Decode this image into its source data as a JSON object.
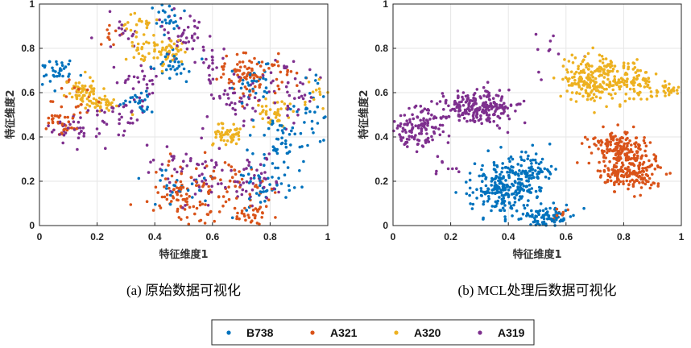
{
  "colors": {
    "B738": "#0072BD",
    "A321": "#D95319",
    "A320": "#EDB120",
    "A319": "#7E2F8E"
  },
  "legend": {
    "entries": [
      "B738",
      "A321",
      "A320",
      "A319"
    ]
  },
  "chart_data": [
    {
      "type": "scatter",
      "title": "(a)  原始数据可视化",
      "xlabel": "特征维度1",
      "ylabel": "特征维度2",
      "xlim": [
        0,
        1
      ],
      "ylim": [
        0,
        1
      ],
      "xticks": [
        "0",
        "0.2",
        "0.4",
        "0.6",
        "0.8",
        "1"
      ],
      "yticks": [
        "0",
        "0.2",
        "0.4",
        "0.6",
        "0.8",
        "1"
      ],
      "grid": true,
      "series": [
        {
          "name": "B738",
          "clusters": [
            {
              "x": 0.06,
              "y": 0.7,
              "sx": 0.03,
              "sy": 0.03,
              "n": 35
            },
            {
              "x": 0.35,
              "y": 0.57,
              "sx": 0.03,
              "sy": 0.03,
              "n": 25
            },
            {
              "x": 0.47,
              "y": 0.72,
              "sx": 0.04,
              "sy": 0.03,
              "n": 30
            },
            {
              "x": 0.45,
              "y": 0.92,
              "sx": 0.03,
              "sy": 0.05,
              "n": 25
            },
            {
              "x": 0.75,
              "y": 0.66,
              "sx": 0.04,
              "sy": 0.05,
              "n": 30
            },
            {
              "x": 0.85,
              "y": 0.38,
              "sx": 0.05,
              "sy": 0.08,
              "n": 55
            },
            {
              "x": 0.78,
              "y": 0.17,
              "sx": 0.05,
              "sy": 0.05,
              "n": 40
            },
            {
              "x": 0.95,
              "y": 0.52,
              "sx": 0.03,
              "sy": 0.1,
              "n": 25
            },
            {
              "x": 0.5,
              "y": 0.18,
              "sx": 0.05,
              "sy": 0.04,
              "n": 25
            }
          ]
        },
        {
          "name": "A321",
          "clusters": [
            {
              "x": 0.08,
              "y": 0.46,
              "sx": 0.03,
              "sy": 0.03,
              "n": 35
            },
            {
              "x": 0.13,
              "y": 0.58,
              "sx": 0.04,
              "sy": 0.05,
              "n": 20
            },
            {
              "x": 0.24,
              "y": 0.86,
              "sx": 0.02,
              "sy": 0.03,
              "n": 10
            },
            {
              "x": 0.72,
              "y": 0.68,
              "sx": 0.05,
              "sy": 0.05,
              "n": 80
            },
            {
              "x": 0.68,
              "y": 0.18,
              "sx": 0.07,
              "sy": 0.05,
              "n": 50
            },
            {
              "x": 0.73,
              "y": 0.05,
              "sx": 0.04,
              "sy": 0.025,
              "n": 35
            },
            {
              "x": 0.48,
              "y": 0.15,
              "sx": 0.04,
              "sy": 0.06,
              "n": 60
            },
            {
              "x": 0.55,
              "y": 0.05,
              "sx": 0.08,
              "sy": 0.04,
              "n": 30
            },
            {
              "x": 0.86,
              "y": 0.68,
              "sx": 0.03,
              "sy": 0.04,
              "n": 15
            }
          ]
        },
        {
          "name": "A320",
          "clusters": [
            {
              "x": 0.15,
              "y": 0.6,
              "sx": 0.03,
              "sy": 0.03,
              "n": 60
            },
            {
              "x": 0.22,
              "y": 0.55,
              "sx": 0.03,
              "sy": 0.02,
              "n": 35
            },
            {
              "x": 0.34,
              "y": 0.92,
              "sx": 0.03,
              "sy": 0.03,
              "n": 20
            },
            {
              "x": 0.36,
              "y": 0.8,
              "sx": 0.03,
              "sy": 0.03,
              "n": 30
            },
            {
              "x": 0.45,
              "y": 0.79,
              "sx": 0.03,
              "sy": 0.03,
              "n": 45
            },
            {
              "x": 0.65,
              "y": 0.41,
              "sx": 0.03,
              "sy": 0.025,
              "n": 50
            },
            {
              "x": 0.82,
              "y": 0.51,
              "sx": 0.03,
              "sy": 0.04,
              "n": 40
            },
            {
              "x": 0.96,
              "y": 0.6,
              "sx": 0.02,
              "sy": 0.05,
              "n": 12
            }
          ]
        },
        {
          "name": "A319",
          "clusters": [
            {
              "x": 0.15,
              "y": 0.43,
              "sx": 0.05,
              "sy": 0.04,
              "n": 35
            },
            {
              "x": 0.28,
              "y": 0.5,
              "sx": 0.04,
              "sy": 0.04,
              "n": 30
            },
            {
              "x": 0.34,
              "y": 0.65,
              "sx": 0.04,
              "sy": 0.04,
              "n": 25
            },
            {
              "x": 0.5,
              "y": 0.87,
              "sx": 0.05,
              "sy": 0.05,
              "n": 40
            },
            {
              "x": 0.6,
              "y": 0.7,
              "sx": 0.03,
              "sy": 0.05,
              "n": 20
            },
            {
              "x": 0.68,
              "y": 0.55,
              "sx": 0.05,
              "sy": 0.05,
              "n": 40
            },
            {
              "x": 0.88,
              "y": 0.6,
              "sx": 0.05,
              "sy": 0.08,
              "n": 40
            },
            {
              "x": 0.52,
              "y": 0.25,
              "sx": 0.07,
              "sy": 0.07,
              "n": 55
            },
            {
              "x": 0.74,
              "y": 0.22,
              "sx": 0.06,
              "sy": 0.06,
              "n": 45
            },
            {
              "x": 0.3,
              "y": 0.86,
              "sx": 0.05,
              "sy": 0.04,
              "n": 15
            }
          ]
        }
      ]
    },
    {
      "type": "scatter",
      "title": "(b) MCL处理后数据可视化",
      "xlabel": "特征维度1",
      "ylabel": "特征维度2",
      "xlim": [
        0,
        1
      ],
      "ylim": [
        0,
        1
      ],
      "xticks": [
        "0",
        "0.2",
        "0.4",
        "0.6",
        "0.8",
        "1"
      ],
      "yticks": [
        "0",
        "0.2",
        "0.4",
        "0.6",
        "0.8",
        "1"
      ],
      "grid": true,
      "series": [
        {
          "name": "B738",
          "clusters": [
            {
              "x": 0.39,
              "y": 0.17,
              "sx": 0.06,
              "sy": 0.06,
              "n": 250
            },
            {
              "x": 0.48,
              "y": 0.26,
              "sx": 0.04,
              "sy": 0.04,
              "n": 60
            },
            {
              "x": 0.53,
              "y": 0.04,
              "sx": 0.05,
              "sy": 0.025,
              "n": 90
            }
          ]
        },
        {
          "name": "A321",
          "clusters": [
            {
              "x": 0.78,
              "y": 0.36,
              "sx": 0.055,
              "sy": 0.035,
              "n": 160
            },
            {
              "x": 0.82,
              "y": 0.24,
              "sx": 0.055,
              "sy": 0.04,
              "n": 190
            },
            {
              "x": 0.57,
              "y": 0.04,
              "sx": 0.02,
              "sy": 0.02,
              "n": 10
            }
          ]
        },
        {
          "name": "A320",
          "clusters": [
            {
              "x": 0.69,
              "y": 0.66,
              "sx": 0.045,
              "sy": 0.05,
              "n": 200
            },
            {
              "x": 0.83,
              "y": 0.66,
              "sx": 0.045,
              "sy": 0.045,
              "n": 100
            },
            {
              "x": 0.95,
              "y": 0.61,
              "sx": 0.025,
              "sy": 0.02,
              "n": 25
            }
          ]
        },
        {
          "name": "A319",
          "clusters": [
            {
              "x": 0.29,
              "y": 0.53,
              "sx": 0.065,
              "sy": 0.04,
              "n": 230
            },
            {
              "x": 0.09,
              "y": 0.45,
              "sx": 0.045,
              "sy": 0.05,
              "n": 130
            },
            {
              "x": 0.17,
              "y": 0.26,
              "sx": 0.03,
              "sy": 0.015,
              "n": 8
            },
            {
              "x": 0.55,
              "y": 0.78,
              "sx": 0.06,
              "sy": 0.08,
              "n": 10
            }
          ]
        }
      ]
    }
  ]
}
